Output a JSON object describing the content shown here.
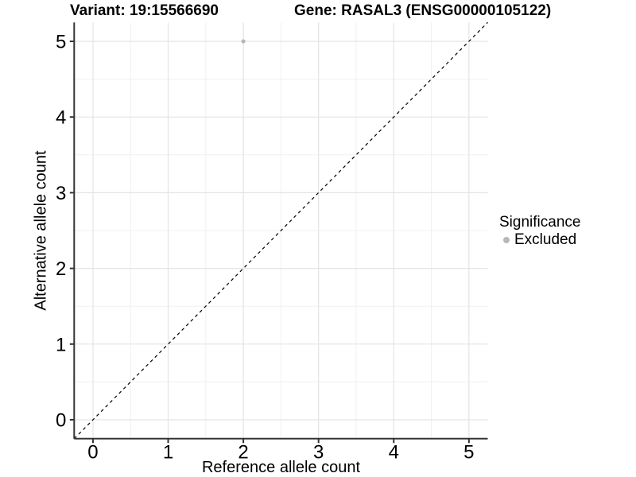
{
  "chart_data": {
    "type": "scatter",
    "title_variant": "Variant: 19:15566690",
    "title_gene": "Gene: RASAL3 (ENSG00000105122)",
    "xlabel": "Reference allele count",
    "ylabel": "Alternative allele count",
    "xlim": [
      -0.25,
      5.25
    ],
    "ylim": [
      -0.25,
      5.25
    ],
    "xticks": [
      0,
      1,
      2,
      3,
      4,
      5
    ],
    "yticks": [
      0,
      1,
      2,
      3,
      4,
      5
    ],
    "grid": "major+minor",
    "series": [
      {
        "name": "Excluded",
        "color": "#b8b8b8",
        "marker": "circle",
        "points": [
          {
            "x": 2,
            "y": 5
          }
        ]
      }
    ],
    "identity_line": {
      "style": "dashed",
      "color": "#000000",
      "from": [
        -0.25,
        -0.25
      ],
      "to": [
        5.25,
        5.25
      ]
    },
    "legend": {
      "title": "Significance",
      "position": "right",
      "entries": [
        {
          "label": "Excluded",
          "color": "#b8b8b8",
          "marker": "circle"
        }
      ]
    }
  },
  "colors": {
    "background": "#ffffff",
    "axis_line": "#333333",
    "grid_major": "#e4e4e4",
    "grid_minor": "#f0f0f0",
    "text": "#000000",
    "excluded_point": "#b8b8b8"
  }
}
